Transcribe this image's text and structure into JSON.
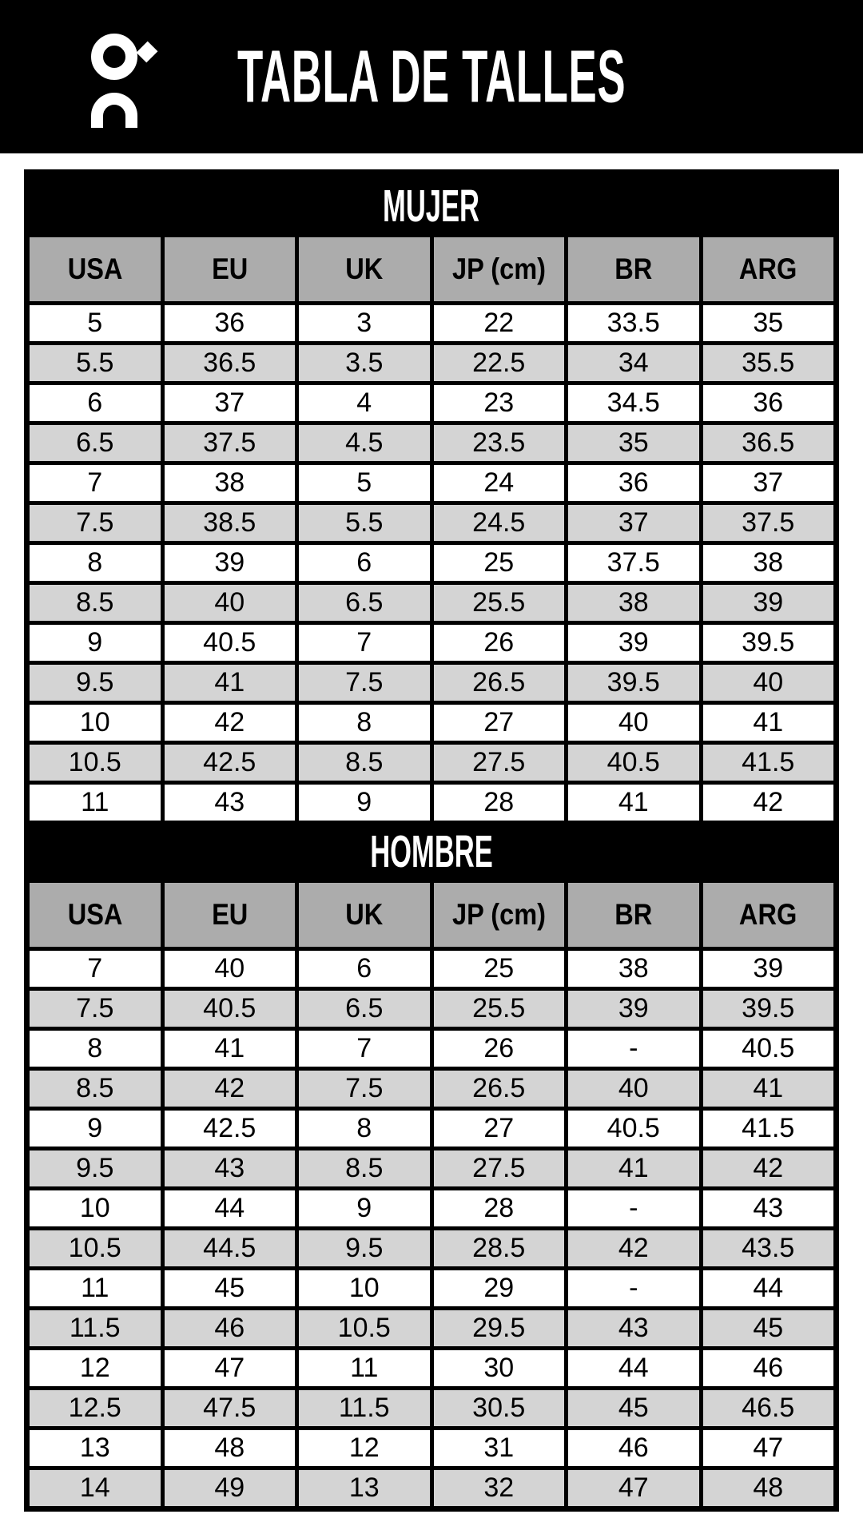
{
  "header": {
    "title": "TABLA DE TALLES",
    "logo": "on-brand-logo"
  },
  "tables": [
    {
      "section": "MUJER",
      "columns": [
        "USA",
        "EU",
        "UK",
        "JP (cm)",
        "BR",
        "ARG"
      ],
      "rows": [
        [
          "5",
          "36",
          "3",
          "22",
          "33.5",
          "35"
        ],
        [
          "5.5",
          "36.5",
          "3.5",
          "22.5",
          "34",
          "35.5"
        ],
        [
          "6",
          "37",
          "4",
          "23",
          "34.5",
          "36"
        ],
        [
          "6.5",
          "37.5",
          "4.5",
          "23.5",
          "35",
          "36.5"
        ],
        [
          "7",
          "38",
          "5",
          "24",
          "36",
          "37"
        ],
        [
          "7.5",
          "38.5",
          "5.5",
          "24.5",
          "37",
          "37.5"
        ],
        [
          "8",
          "39",
          "6",
          "25",
          "37.5",
          "38"
        ],
        [
          "8.5",
          "40",
          "6.5",
          "25.5",
          "38",
          "39"
        ],
        [
          "9",
          "40.5",
          "7",
          "26",
          "39",
          "39.5"
        ],
        [
          "9.5",
          "41",
          "7.5",
          "26.5",
          "39.5",
          "40"
        ],
        [
          "10",
          "42",
          "8",
          "27",
          "40",
          "41"
        ],
        [
          "10.5",
          "42.5",
          "8.5",
          "27.5",
          "40.5",
          "41.5"
        ],
        [
          "11",
          "43",
          "9",
          "28",
          "41",
          "42"
        ]
      ]
    },
    {
      "section": "HOMBRE",
      "columns": [
        "USA",
        "EU",
        "UK",
        "JP (cm)",
        "BR",
        "ARG"
      ],
      "rows": [
        [
          "7",
          "40",
          "6",
          "25",
          "38",
          "39"
        ],
        [
          "7.5",
          "40.5",
          "6.5",
          "25.5",
          "39",
          "39.5"
        ],
        [
          "8",
          "41",
          "7",
          "26",
          "-",
          "40.5"
        ],
        [
          "8.5",
          "42",
          "7.5",
          "26.5",
          "40",
          "41"
        ],
        [
          "9",
          "42.5",
          "8",
          "27",
          "40.5",
          "41.5"
        ],
        [
          "9.5",
          "43",
          "8.5",
          "27.5",
          "41",
          "42"
        ],
        [
          "10",
          "44",
          "9",
          "28",
          "-",
          "43"
        ],
        [
          "10.5",
          "44.5",
          "9.5",
          "28.5",
          "42",
          "43.5"
        ],
        [
          "11",
          "45",
          "10",
          "29",
          "-",
          "44"
        ],
        [
          "11.5",
          "46",
          "10.5",
          "29.5",
          "43",
          "45"
        ],
        [
          "12",
          "47",
          "11",
          "30",
          "44",
          "46"
        ],
        [
          "12.5",
          "47.5",
          "11.5",
          "30.5",
          "45",
          "46.5"
        ],
        [
          "13",
          "48",
          "12",
          "31",
          "46",
          "47"
        ],
        [
          "14",
          "49",
          "13",
          "32",
          "47",
          "48"
        ]
      ]
    }
  ],
  "colors": {
    "banner": "#000000",
    "border": "#000000",
    "column_header_bg": "#ACACAC",
    "row_bg": "#FFFFFF",
    "row_alt_bg": "#D4D4D4",
    "text": "#000000",
    "banner_text": "#FFFFFF"
  }
}
